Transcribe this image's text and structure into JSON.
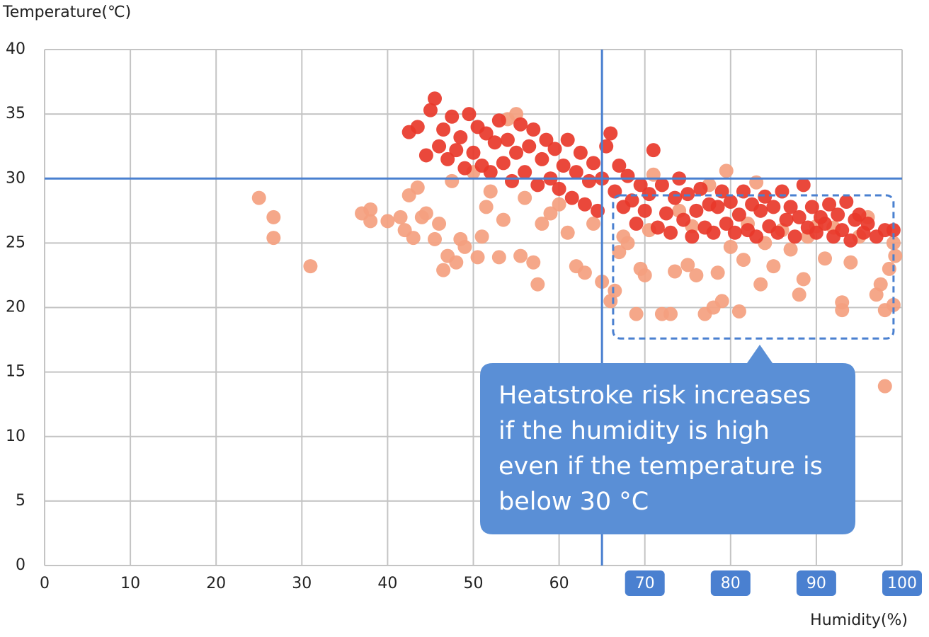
{
  "chart_data": {
    "type": "scatter",
    "y_label": "Temperature(℃)",
    "x_label": "Humidity(%)",
    "xlim": [
      0,
      100
    ],
    "ylim": [
      0,
      40
    ],
    "xticks": [
      0,
      10,
      20,
      30,
      40,
      50,
      60,
      70,
      80,
      90,
      100
    ],
    "yticks": [
      0,
      5,
      10,
      15,
      20,
      25,
      30,
      35,
      40
    ],
    "xtick_highlight": [
      false,
      false,
      false,
      false,
      false,
      false,
      false,
      true,
      true,
      true,
      true
    ],
    "grid": true,
    "reference_lines": {
      "x": 65,
      "y": 30,
      "color": "#4a80d0"
    },
    "highlight_region": {
      "x": [
        66.3,
        99
      ],
      "y": [
        17.6,
        28.7
      ],
      "color": "#4a80d0"
    },
    "annotation": {
      "lines": [
        "Heatstroke risk increases",
        "if the humidity is high",
        "even if the temperature is",
        "below 30 °C"
      ],
      "color": "#5a8fd6"
    },
    "series": [
      {
        "color": "#f4a07f",
        "x": [
          25,
          26.7,
          26.7,
          31,
          37,
          38,
          38,
          40,
          41.5,
          42,
          42.5,
          43,
          43.5,
          44,
          44.5,
          45.5,
          46,
          46.5,
          47,
          47.5,
          48,
          48.5,
          49,
          50,
          50.5,
          51,
          51.5,
          52,
          53,
          53.5,
          54,
          55,
          55.5,
          56,
          57,
          57.5,
          58,
          59,
          60,
          61,
          62,
          63,
          64,
          65,
          66,
          66.5,
          67,
          67.5,
          68,
          69,
          69.5,
          70,
          70.5,
          71,
          72,
          73,
          73.5,
          74,
          75,
          75.5,
          76,
          77,
          77.5,
          78,
          78.5,
          79,
          79.5,
          80,
          81,
          81.5,
          82,
          83,
          83.5,
          84,
          85,
          86,
          87,
          88,
          88.5,
          89,
          90,
          91,
          92,
          93,
          93,
          94,
          95,
          96,
          97,
          97.5,
          98,
          98,
          98.5,
          99,
          99,
          99.2
        ],
        "values": [
          28.5,
          27,
          25.4,
          23.2,
          27.3,
          27.6,
          26.7,
          26.7,
          27,
          26,
          28.7,
          25.4,
          29.3,
          27,
          27.3,
          25.3,
          26.5,
          22.9,
          24,
          29.8,
          23.5,
          25.3,
          24.7,
          30.5,
          23.9,
          25.5,
          27.8,
          29,
          23.9,
          26.8,
          34.6,
          35,
          24,
          28.5,
          23.5,
          21.8,
          26.5,
          27.3,
          28,
          25.8,
          23.2,
          22.7,
          26.5,
          22,
          20.5,
          21.3,
          24.3,
          25.5,
          25,
          19.5,
          23,
          22.5,
          26,
          30.3,
          19.5,
          19.5,
          22.8,
          27.5,
          23.3,
          26.3,
          22.5,
          19.5,
          29.5,
          20,
          22.7,
          20.5,
          30.6,
          24.7,
          19.7,
          23.7,
          26.5,
          29.7,
          21.8,
          25,
          23.2,
          26,
          24.5,
          21,
          22.2,
          25.5,
          26.3,
          23.8,
          26.2,
          19.8,
          20.4,
          23.5,
          25.5,
          27,
          21,
          21.8,
          19.8,
          13.9,
          23,
          20.2,
          25,
          24
        ]
      },
      {
        "color": "#e8382a",
        "x": [
          42.5,
          43.5,
          44.5,
          45,
          45.5,
          46,
          46.5,
          47,
          47.5,
          48,
          48.5,
          49,
          49.5,
          50,
          50.5,
          51,
          51.5,
          52,
          52.5,
          53,
          53.5,
          54,
          54.5,
          55,
          55.5,
          56,
          56.5,
          57,
          57.5,
          58,
          58.5,
          59,
          59.5,
          60,
          60.5,
          61,
          61.5,
          62,
          62.5,
          63,
          63.5,
          64,
          64.5,
          65,
          65.5,
          66,
          66.5,
          67,
          67.5,
          68,
          68.5,
          69,
          69.5,
          70,
          70.5,
          71,
          71.5,
          72,
          72.5,
          73,
          73.5,
          74,
          74.5,
          75,
          75.5,
          76,
          76.5,
          77,
          77.5,
          78,
          78.5,
          79,
          79.5,
          80,
          80.5,
          81,
          81.5,
          82,
          82.5,
          83,
          83.5,
          84,
          84.5,
          85,
          85.5,
          86,
          86.5,
          87,
          87.5,
          88,
          88.5,
          89,
          89.5,
          90,
          90.5,
          91,
          91.5,
          92,
          92.5,
          93,
          93.5,
          94,
          94.5,
          95,
          95.5,
          96,
          97,
          98,
          99
        ],
        "values": [
          33.6,
          34,
          31.8,
          35.3,
          36.2,
          32.5,
          33.8,
          31.5,
          34.8,
          32.2,
          33.2,
          30.8,
          35,
          32,
          34,
          31,
          33.5,
          30.5,
          32.8,
          34.5,
          31.2,
          33,
          29.8,
          32,
          34.2,
          30.5,
          32.5,
          33.8,
          29.5,
          31.5,
          33,
          30,
          32.3,
          29.2,
          31,
          33,
          28.5,
          30.5,
          32,
          28,
          29.8,
          31.2,
          27.5,
          30,
          32.5,
          33.5,
          29,
          31,
          27.8,
          30.2,
          28.3,
          26.5,
          29.5,
          27.5,
          28.8,
          32.2,
          26.2,
          29.5,
          27.3,
          25.8,
          28.5,
          30,
          26.8,
          28.8,
          25.5,
          27.5,
          29.2,
          26.2,
          28,
          25.8,
          27.8,
          29,
          26.5,
          28.2,
          25.8,
          27.2,
          29,
          26,
          28,
          25.5,
          27.5,
          28.6,
          26.3,
          27.8,
          25.8,
          29,
          26.8,
          27.8,
          25.5,
          27,
          29.5,
          26.2,
          27.8,
          25.8,
          27,
          26.5,
          28,
          25.5,
          27.2,
          26,
          28.2,
          25.2,
          26.8,
          27.2,
          25.8,
          26.5,
          25.5,
          26,
          26
        ]
      }
    ]
  }
}
